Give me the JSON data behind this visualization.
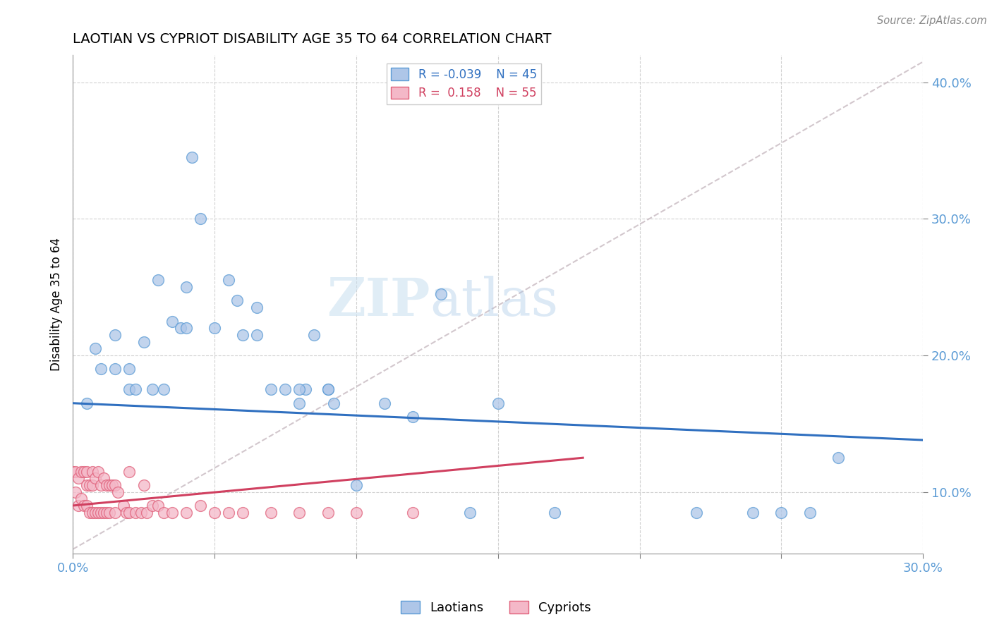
{
  "title": "LAOTIAN VS CYPRIOT DISABILITY AGE 35 TO 64 CORRELATION CHART",
  "source_text": "Source: ZipAtlas.com",
  "ylabel": "Disability Age 35 to 64",
  "xlim": [
    0.0,
    0.3
  ],
  "ylim": [
    0.055,
    0.42
  ],
  "xticks": [
    0.0,
    0.05,
    0.1,
    0.15,
    0.2,
    0.25,
    0.3
  ],
  "yticks": [
    0.1,
    0.2,
    0.3,
    0.4
  ],
  "ytick_labels": [
    "10.0%",
    "20.0%",
    "30.0%",
    "40.0%"
  ],
  "legend_r1": "R = -0.039",
  "legend_n1": "N = 45",
  "legend_r2": "R =  0.158",
  "legend_n2": "N = 55",
  "watermark_zip": "ZIP",
  "watermark_atlas": "atlas",
  "laotian_color": "#aec6e8",
  "laotian_edge_color": "#5b9bd5",
  "cypriot_color": "#f4b8c8",
  "cypriot_edge_color": "#e0607a",
  "laotian_line_color": "#3070c0",
  "cypriot_line_color": "#d04060",
  "scatter_size": 130,
  "scatter_alpha": 0.75,
  "laotians_x": [
    0.005,
    0.008,
    0.01,
    0.015,
    0.015,
    0.02,
    0.02,
    0.022,
    0.025,
    0.028,
    0.03,
    0.032,
    0.035,
    0.038,
    0.04,
    0.04,
    0.042,
    0.045,
    0.05,
    0.055,
    0.058,
    0.06,
    0.065,
    0.065,
    0.07,
    0.075,
    0.08,
    0.082,
    0.085,
    0.09,
    0.092,
    0.1,
    0.11,
    0.12,
    0.13,
    0.14,
    0.15,
    0.17,
    0.22,
    0.24,
    0.25,
    0.26,
    0.27,
    0.08,
    0.09
  ],
  "laotians_y": [
    0.165,
    0.205,
    0.19,
    0.215,
    0.19,
    0.19,
    0.175,
    0.175,
    0.21,
    0.175,
    0.255,
    0.175,
    0.225,
    0.22,
    0.25,
    0.22,
    0.345,
    0.3,
    0.22,
    0.255,
    0.24,
    0.215,
    0.215,
    0.235,
    0.175,
    0.175,
    0.165,
    0.175,
    0.215,
    0.175,
    0.165,
    0.105,
    0.165,
    0.155,
    0.245,
    0.085,
    0.165,
    0.085,
    0.085,
    0.085,
    0.085,
    0.085,
    0.125,
    0.175,
    0.175
  ],
  "cypriots_x": [
    0.0,
    0.001,
    0.001,
    0.002,
    0.002,
    0.003,
    0.003,
    0.004,
    0.004,
    0.005,
    0.005,
    0.005,
    0.006,
    0.006,
    0.007,
    0.007,
    0.007,
    0.008,
    0.008,
    0.009,
    0.009,
    0.01,
    0.01,
    0.011,
    0.011,
    0.012,
    0.012,
    0.013,
    0.013,
    0.014,
    0.015,
    0.015,
    0.016,
    0.018,
    0.019,
    0.02,
    0.02,
    0.022,
    0.024,
    0.025,
    0.026,
    0.028,
    0.03,
    0.032,
    0.035,
    0.04,
    0.045,
    0.05,
    0.055,
    0.06,
    0.07,
    0.08,
    0.09,
    0.1,
    0.12
  ],
  "cypriots_y": [
    0.115,
    0.115,
    0.1,
    0.11,
    0.09,
    0.115,
    0.095,
    0.115,
    0.09,
    0.115,
    0.105,
    0.09,
    0.105,
    0.085,
    0.115,
    0.105,
    0.085,
    0.11,
    0.085,
    0.115,
    0.085,
    0.105,
    0.085,
    0.11,
    0.085,
    0.105,
    0.085,
    0.105,
    0.085,
    0.105,
    0.105,
    0.085,
    0.1,
    0.09,
    0.085,
    0.115,
    0.085,
    0.085,
    0.085,
    0.105,
    0.085,
    0.09,
    0.09,
    0.085,
    0.085,
    0.085,
    0.09,
    0.085,
    0.085,
    0.085,
    0.085,
    0.085,
    0.085,
    0.085,
    0.085
  ],
  "ref_line_x": [
    0.0,
    0.3
  ],
  "ref_line_y": [
    0.058,
    0.415
  ],
  "lao_trend_x0": 0.0,
  "lao_trend_x1": 0.3,
  "lao_trend_y0": 0.165,
  "lao_trend_y1": 0.138,
  "cyp_trend_x0": 0.0,
  "cyp_trend_x1": 0.18,
  "cyp_trend_y0": 0.09,
  "cyp_trend_y1": 0.125
}
